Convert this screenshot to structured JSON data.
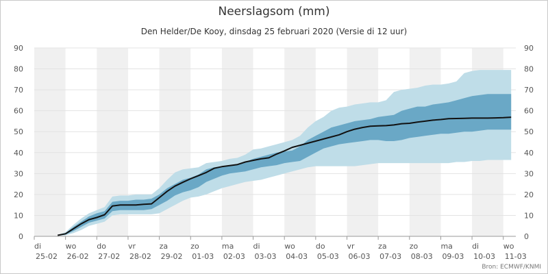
{
  "chart_data": {
    "type": "area",
    "title": "Neerslagsom (mm)",
    "subtitle": "Den Helder/De Kooy, dinsdag 25 februari 2020 (Versie di 12 uur)",
    "source": "Bron: ECMWF/KNMI",
    "xlabel": "",
    "ylabel": "",
    "ylim": [
      0,
      90
    ],
    "yticks": [
      0,
      10,
      20,
      30,
      40,
      50,
      60,
      70,
      80,
      90
    ],
    "grid": true,
    "legend": "none",
    "x_unit": "days since 25-02 00:00",
    "xlim": [
      0,
      15.4
    ],
    "day_labels": [
      {
        "day": "di",
        "date": "25-02"
      },
      {
        "day": "wo",
        "date": "26-02"
      },
      {
        "day": "do",
        "date": "27-02"
      },
      {
        "day": "vr",
        "date": "28-02"
      },
      {
        "day": "za",
        "date": "29-02"
      },
      {
        "day": "zo",
        "date": "01-03"
      },
      {
        "day": "ma",
        "date": "02-03"
      },
      {
        "day": "di",
        "date": "03-03"
      },
      {
        "day": "wo",
        "date": "04-03"
      },
      {
        "day": "do",
        "date": "05-03"
      },
      {
        "day": "vr",
        "date": "06-03"
      },
      {
        "day": "za",
        "date": "07-03"
      },
      {
        "day": "zo",
        "date": "08-03"
      },
      {
        "day": "ma",
        "date": "09-03"
      },
      {
        "day": "di",
        "date": "10-03"
      },
      {
        "day": "wo",
        "date": "11-03"
      }
    ],
    "x": [
      0.75,
      1.0,
      1.25,
      1.5,
      1.75,
      2.0,
      2.25,
      2.5,
      2.75,
      3.0,
      3.25,
      3.5,
      3.75,
      4.0,
      4.25,
      4.5,
      4.75,
      5.0,
      5.25,
      5.5,
      5.75,
      6.0,
      6.25,
      6.5,
      6.75,
      7.0,
      7.25,
      7.5,
      7.75,
      8.0,
      8.25,
      8.5,
      8.75,
      9.0,
      9.25,
      9.5,
      9.75,
      10.0,
      10.25,
      10.5,
      10.75,
      11.0,
      11.25,
      11.5,
      11.75,
      12.0,
      12.25,
      12.5,
      12.75,
      13.0,
      13.25,
      13.5,
      13.75,
      14.0,
      14.25,
      14.5,
      14.75,
      15.0,
      15.25
    ],
    "series": [
      {
        "role": "outer_upper",
        "color": "#bfdde8",
        "values": [
          0.7,
          2,
          5.5,
          8.5,
          11,
          12.5,
          14,
          19,
          19.5,
          19.5,
          20,
          20,
          20,
          23,
          27,
          30.5,
          32,
          32.5,
          33,
          35,
          35.5,
          36,
          37,
          37.5,
          39,
          41.5,
          42,
          43,
          44,
          45,
          46,
          48,
          52,
          55,
          57,
          60,
          61.5,
          62,
          63,
          63.5,
          64,
          64,
          65,
          69,
          70,
          70.5,
          71,
          72,
          72.5,
          72.5,
          73,
          74,
          78,
          79,
          79.5,
          79.5,
          79.5,
          79.5,
          79.5
        ]
      },
      {
        "role": "inner_upper",
        "color": "#6aa8c6",
        "values": [
          0.6,
          1.5,
          4.5,
          7,
          9.5,
          11,
          12,
          16.5,
          17,
          17,
          17.5,
          17.5,
          18,
          20,
          23,
          25,
          27,
          28,
          29.5,
          32,
          33,
          33.5,
          34,
          34.5,
          35.5,
          37,
          38,
          39,
          40,
          40.5,
          41,
          43,
          46,
          48,
          50,
          52,
          53,
          54,
          55,
          55.5,
          56,
          57,
          57.5,
          58,
          60,
          61,
          62,
          62,
          63,
          63.5,
          64,
          65,
          66,
          67,
          67.5,
          68,
          68,
          68,
          68
        ]
      },
      {
        "role": "inner_lower",
        "color": "#6aa8c6",
        "values": [
          0.4,
          0.8,
          2.5,
          4.5,
          6.5,
          7.5,
          8.5,
          12,
          12.5,
          12.5,
          12.5,
          12.5,
          13,
          15,
          17,
          19.5,
          21,
          22,
          23.5,
          26,
          27.5,
          29,
          30,
          30.5,
          31,
          32,
          33,
          33.5,
          34,
          35,
          35.5,
          36,
          38,
          40,
          42,
          43,
          44,
          44.5,
          45,
          45.5,
          46,
          46,
          45.5,
          45.5,
          46,
          47,
          47.5,
          48,
          48.5,
          49,
          49,
          49.5,
          50,
          50,
          50.5,
          51,
          51,
          51,
          51
        ]
      },
      {
        "role": "outer_lower",
        "color": "#bfdde8",
        "values": [
          0.3,
          0.5,
          1.5,
          3,
          5,
          6,
          7,
          10,
          10.5,
          10.5,
          10.5,
          10.5,
          10.5,
          11,
          13,
          15,
          17,
          18.5,
          19,
          20,
          21.5,
          23,
          24,
          25,
          26,
          26.5,
          27,
          28,
          29,
          30,
          31,
          32,
          33,
          33.5,
          33.5,
          33.5,
          33.5,
          33.5,
          33.5,
          34,
          34.5,
          35,
          35,
          35,
          35,
          35,
          35,
          35,
          35,
          35,
          35,
          35.5,
          35.5,
          36,
          36,
          36.5,
          36.5,
          36.5,
          36.5
        ]
      },
      {
        "role": "median",
        "color": "#111111",
        "values": [
          0.5,
          1.2,
          3.6,
          6,
          8,
          9,
          10.3,
          14.5,
          15,
          15,
          15,
          15.3,
          15.5,
          18.5,
          21.5,
          24,
          25.8,
          27.5,
          29,
          30.5,
          32.5,
          33.3,
          33.8,
          34.3,
          35.5,
          36.3,
          37,
          37.5,
          39.3,
          40.8,
          42.5,
          43.5,
          44.5,
          45.5,
          46.5,
          47.5,
          48.5,
          50,
          51.2,
          52,
          52.6,
          52.8,
          52.9,
          53.2,
          53.8,
          54,
          54.6,
          55,
          55.5,
          55.8,
          56.2,
          56.3,
          56.4,
          56.5,
          56.5,
          56.5,
          56.6,
          56.7,
          56.9
        ]
      }
    ]
  }
}
